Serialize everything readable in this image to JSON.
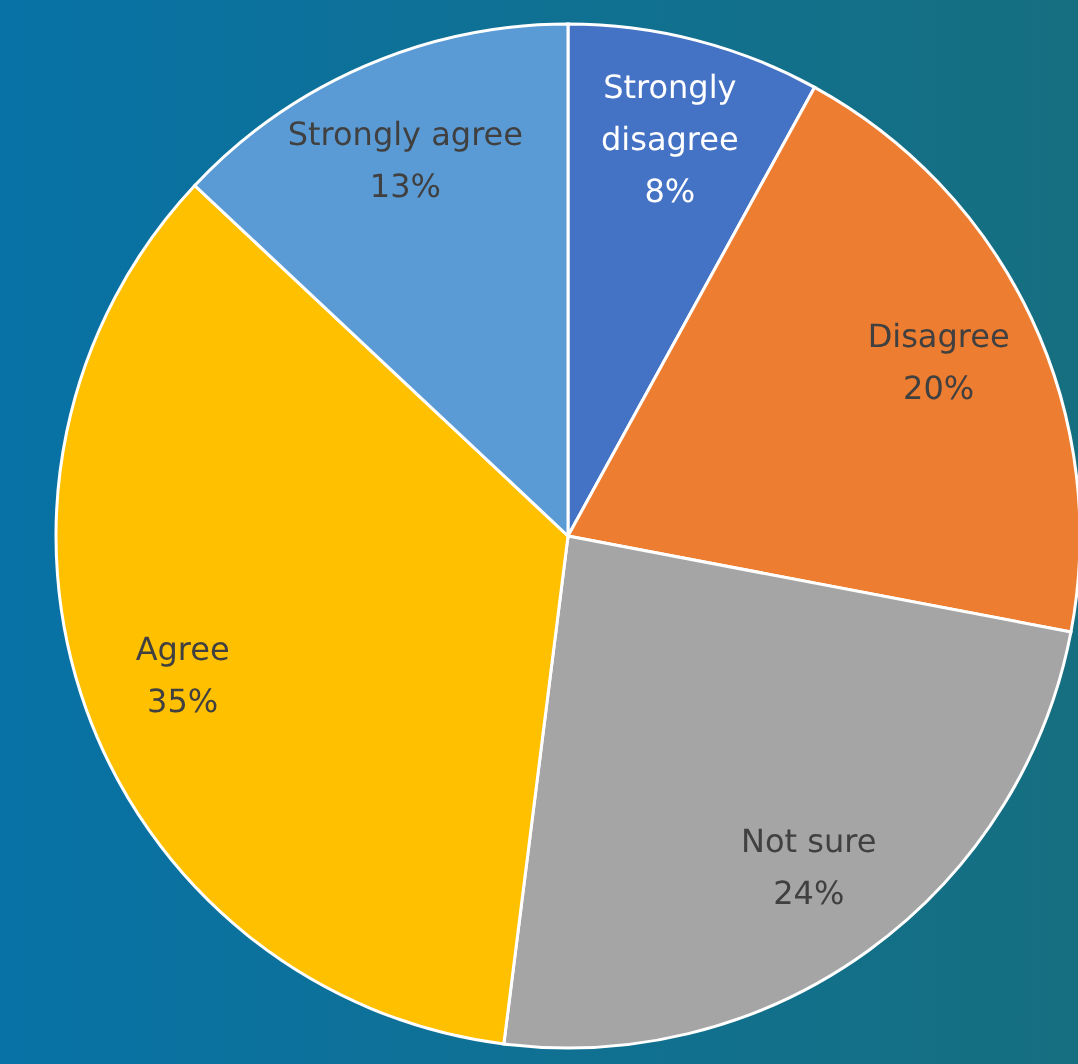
{
  "chart_data": {
    "type": "pie",
    "categories": [
      "Strongly disagree",
      "Disagree",
      "Not sure",
      "Agree",
      "Strongly agree"
    ],
    "values": [
      8,
      20,
      24,
      35,
      13
    ],
    "colors": [
      "#4472c4",
      "#ed7d31",
      "#a5a5a5",
      "#ffc000",
      "#5b9bd5"
    ],
    "value_labels": [
      "8%",
      "20%",
      "24%",
      "35%",
      "13%"
    ]
  }
}
